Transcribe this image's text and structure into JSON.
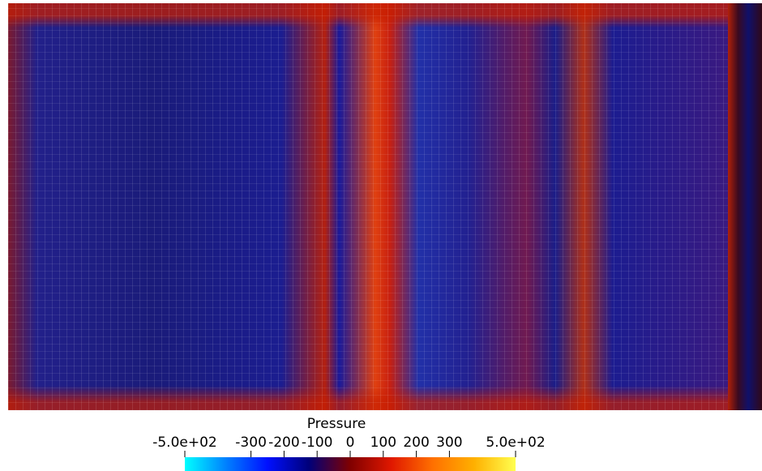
{
  "colorbar": {
    "title": "Pressure",
    "lim": [
      -500,
      500
    ],
    "ticks": [
      {
        "value": -500,
        "label": "-5.0e+02"
      },
      -300,
      -200,
      -100,
      0,
      100,
      200,
      300,
      {
        "value": 500,
        "label": "5.0e+02"
      }
    ],
    "colors": [
      "#00ffff",
      "#0080ff",
      "#0010ff",
      "#00007a",
      "#800000",
      "#e01800",
      "#ff7000",
      "#ffb000",
      "#ffff50"
    ]
  }
}
